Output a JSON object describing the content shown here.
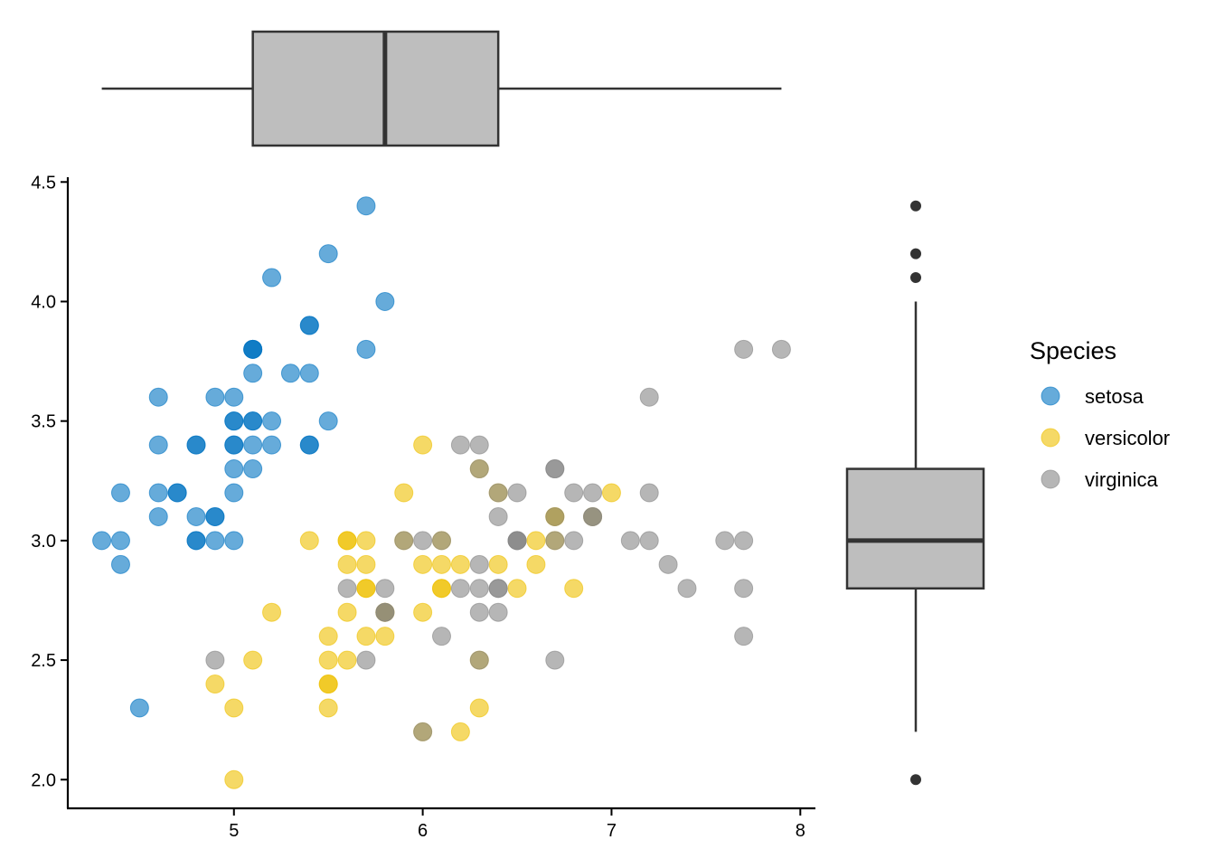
{
  "chart_data": {
    "type": "scatter",
    "x_ticks": [
      "5",
      "6",
      "7",
      "8"
    ],
    "y_ticks": [
      "2.0",
      "2.5",
      "3.0",
      "3.5",
      "4.0",
      "4.5"
    ],
    "xlim": [
      4.12,
      8.08
    ],
    "ylim": [
      1.88,
      4.52
    ],
    "legend": {
      "title": "Species",
      "position": "right"
    },
    "grid": false,
    "series": [
      {
        "name": "setosa",
        "color": "#0073C2",
        "points": [
          [
            5.1,
            3.5
          ],
          [
            4.9,
            3.0
          ],
          [
            4.7,
            3.2
          ],
          [
            4.6,
            3.1
          ],
          [
            5.0,
            3.6
          ],
          [
            5.4,
            3.9
          ],
          [
            4.6,
            3.4
          ],
          [
            5.0,
            3.4
          ],
          [
            4.4,
            2.9
          ],
          [
            4.9,
            3.1
          ],
          [
            5.4,
            3.7
          ],
          [
            4.8,
            3.4
          ],
          [
            4.8,
            3.0
          ],
          [
            4.3,
            3.0
          ],
          [
            5.8,
            4.0
          ],
          [
            5.7,
            4.4
          ],
          [
            5.4,
            3.9
          ],
          [
            5.1,
            3.5
          ],
          [
            5.7,
            3.8
          ],
          [
            5.1,
            3.8
          ],
          [
            5.4,
            3.4
          ],
          [
            5.1,
            3.7
          ],
          [
            4.6,
            3.6
          ],
          [
            5.1,
            3.3
          ],
          [
            4.8,
            3.4
          ],
          [
            5.0,
            3.0
          ],
          [
            5.0,
            3.4
          ],
          [
            5.2,
            3.5
          ],
          [
            5.2,
            3.4
          ],
          [
            4.7,
            3.2
          ],
          [
            4.8,
            3.1
          ],
          [
            5.4,
            3.4
          ],
          [
            5.2,
            4.1
          ],
          [
            5.5,
            4.2
          ],
          [
            4.9,
            3.1
          ],
          [
            5.0,
            3.2
          ],
          [
            5.5,
            3.5
          ],
          [
            4.9,
            3.6
          ],
          [
            4.4,
            3.0
          ],
          [
            5.1,
            3.4
          ],
          [
            5.0,
            3.5
          ],
          [
            4.5,
            2.3
          ],
          [
            4.4,
            3.2
          ],
          [
            5.0,
            3.5
          ],
          [
            5.1,
            3.8
          ],
          [
            4.8,
            3.0
          ],
          [
            5.1,
            3.8
          ],
          [
            4.6,
            3.2
          ],
          [
            5.3,
            3.7
          ],
          [
            5.0,
            3.3
          ]
        ]
      },
      {
        "name": "versicolor",
        "color": "#EFC000",
        "points": [
          [
            7.0,
            3.2
          ],
          [
            6.4,
            3.2
          ],
          [
            6.9,
            3.1
          ],
          [
            5.5,
            2.3
          ],
          [
            6.5,
            2.8
          ],
          [
            5.7,
            2.8
          ],
          [
            6.3,
            3.3
          ],
          [
            4.9,
            2.4
          ],
          [
            6.6,
            2.9
          ],
          [
            5.2,
            2.7
          ],
          [
            5.0,
            2.0
          ],
          [
            5.9,
            3.0
          ],
          [
            6.0,
            2.2
          ],
          [
            6.1,
            2.9
          ],
          [
            5.6,
            2.9
          ],
          [
            6.7,
            3.1
          ],
          [
            5.6,
            3.0
          ],
          [
            5.8,
            2.7
          ],
          [
            6.2,
            2.2
          ],
          [
            5.6,
            2.5
          ],
          [
            5.9,
            3.2
          ],
          [
            6.1,
            2.8
          ],
          [
            6.3,
            2.5
          ],
          [
            6.1,
            2.8
          ],
          [
            6.4,
            2.9
          ],
          [
            6.6,
            3.0
          ],
          [
            6.8,
            2.8
          ],
          [
            6.7,
            3.0
          ],
          [
            6.0,
            2.9
          ],
          [
            5.7,
            2.6
          ],
          [
            5.5,
            2.4
          ],
          [
            5.5,
            2.4
          ],
          [
            5.8,
            2.7
          ],
          [
            6.0,
            2.7
          ],
          [
            5.4,
            3.0
          ],
          [
            6.0,
            3.4
          ],
          [
            6.7,
            3.1
          ],
          [
            6.3,
            2.3
          ],
          [
            5.6,
            3.0
          ],
          [
            5.5,
            2.5
          ],
          [
            5.5,
            2.6
          ],
          [
            6.1,
            3.0
          ],
          [
            5.8,
            2.6
          ],
          [
            5.0,
            2.3
          ],
          [
            5.6,
            2.7
          ],
          [
            5.7,
            3.0
          ],
          [
            5.7,
            2.9
          ],
          [
            6.2,
            2.9
          ],
          [
            5.1,
            2.5
          ],
          [
            5.7,
            2.8
          ]
        ]
      },
      {
        "name": "virginica",
        "color": "#868686",
        "points": [
          [
            6.3,
            3.3
          ],
          [
            5.8,
            2.7
          ],
          [
            7.1,
            3.0
          ],
          [
            6.3,
            2.9
          ],
          [
            6.5,
            3.0
          ],
          [
            7.6,
            3.0
          ],
          [
            4.9,
            2.5
          ],
          [
            7.3,
            2.9
          ],
          [
            6.7,
            2.5
          ],
          [
            7.2,
            3.6
          ],
          [
            6.5,
            3.2
          ],
          [
            6.4,
            2.7
          ],
          [
            6.8,
            3.0
          ],
          [
            5.7,
            2.5
          ],
          [
            5.8,
            2.8
          ],
          [
            6.4,
            3.2
          ],
          [
            6.5,
            3.0
          ],
          [
            7.7,
            3.8
          ],
          [
            7.7,
            2.6
          ],
          [
            6.0,
            2.2
          ],
          [
            6.9,
            3.2
          ],
          [
            5.6,
            2.8
          ],
          [
            7.7,
            2.8
          ],
          [
            6.3,
            2.7
          ],
          [
            6.7,
            3.3
          ],
          [
            7.2,
            3.2
          ],
          [
            6.2,
            2.8
          ],
          [
            6.1,
            3.0
          ],
          [
            6.4,
            2.8
          ],
          [
            7.2,
            3.0
          ],
          [
            7.4,
            2.8
          ],
          [
            7.9,
            3.8
          ],
          [
            6.4,
            2.8
          ],
          [
            6.3,
            2.8
          ],
          [
            6.1,
            2.6
          ],
          [
            7.7,
            3.0
          ],
          [
            6.3,
            3.4
          ],
          [
            6.4,
            3.1
          ],
          [
            6.0,
            3.0
          ],
          [
            6.9,
            3.1
          ],
          [
            6.7,
            3.1
          ],
          [
            6.9,
            3.1
          ],
          [
            5.8,
            2.7
          ],
          [
            6.8,
            3.2
          ],
          [
            6.7,
            3.3
          ],
          [
            6.7,
            3.0
          ],
          [
            6.3,
            2.5
          ],
          [
            6.5,
            3.0
          ],
          [
            6.2,
            3.4
          ],
          [
            5.9,
            3.0
          ]
        ]
      }
    ],
    "marginal_x_boxplot": {
      "min": 4.3,
      "q1": 5.1,
      "median": 5.8,
      "q3": 6.4,
      "max": 7.9,
      "outliers": []
    },
    "marginal_y_boxplot": {
      "min": 2.2,
      "q1": 2.8,
      "median": 3.0,
      "q3": 3.3,
      "max": 4.0,
      "outliers": [
        4.4,
        4.2,
        4.1,
        2.0
      ]
    },
    "box_fill": "#BEBEBE",
    "box_stroke": "#333333"
  }
}
